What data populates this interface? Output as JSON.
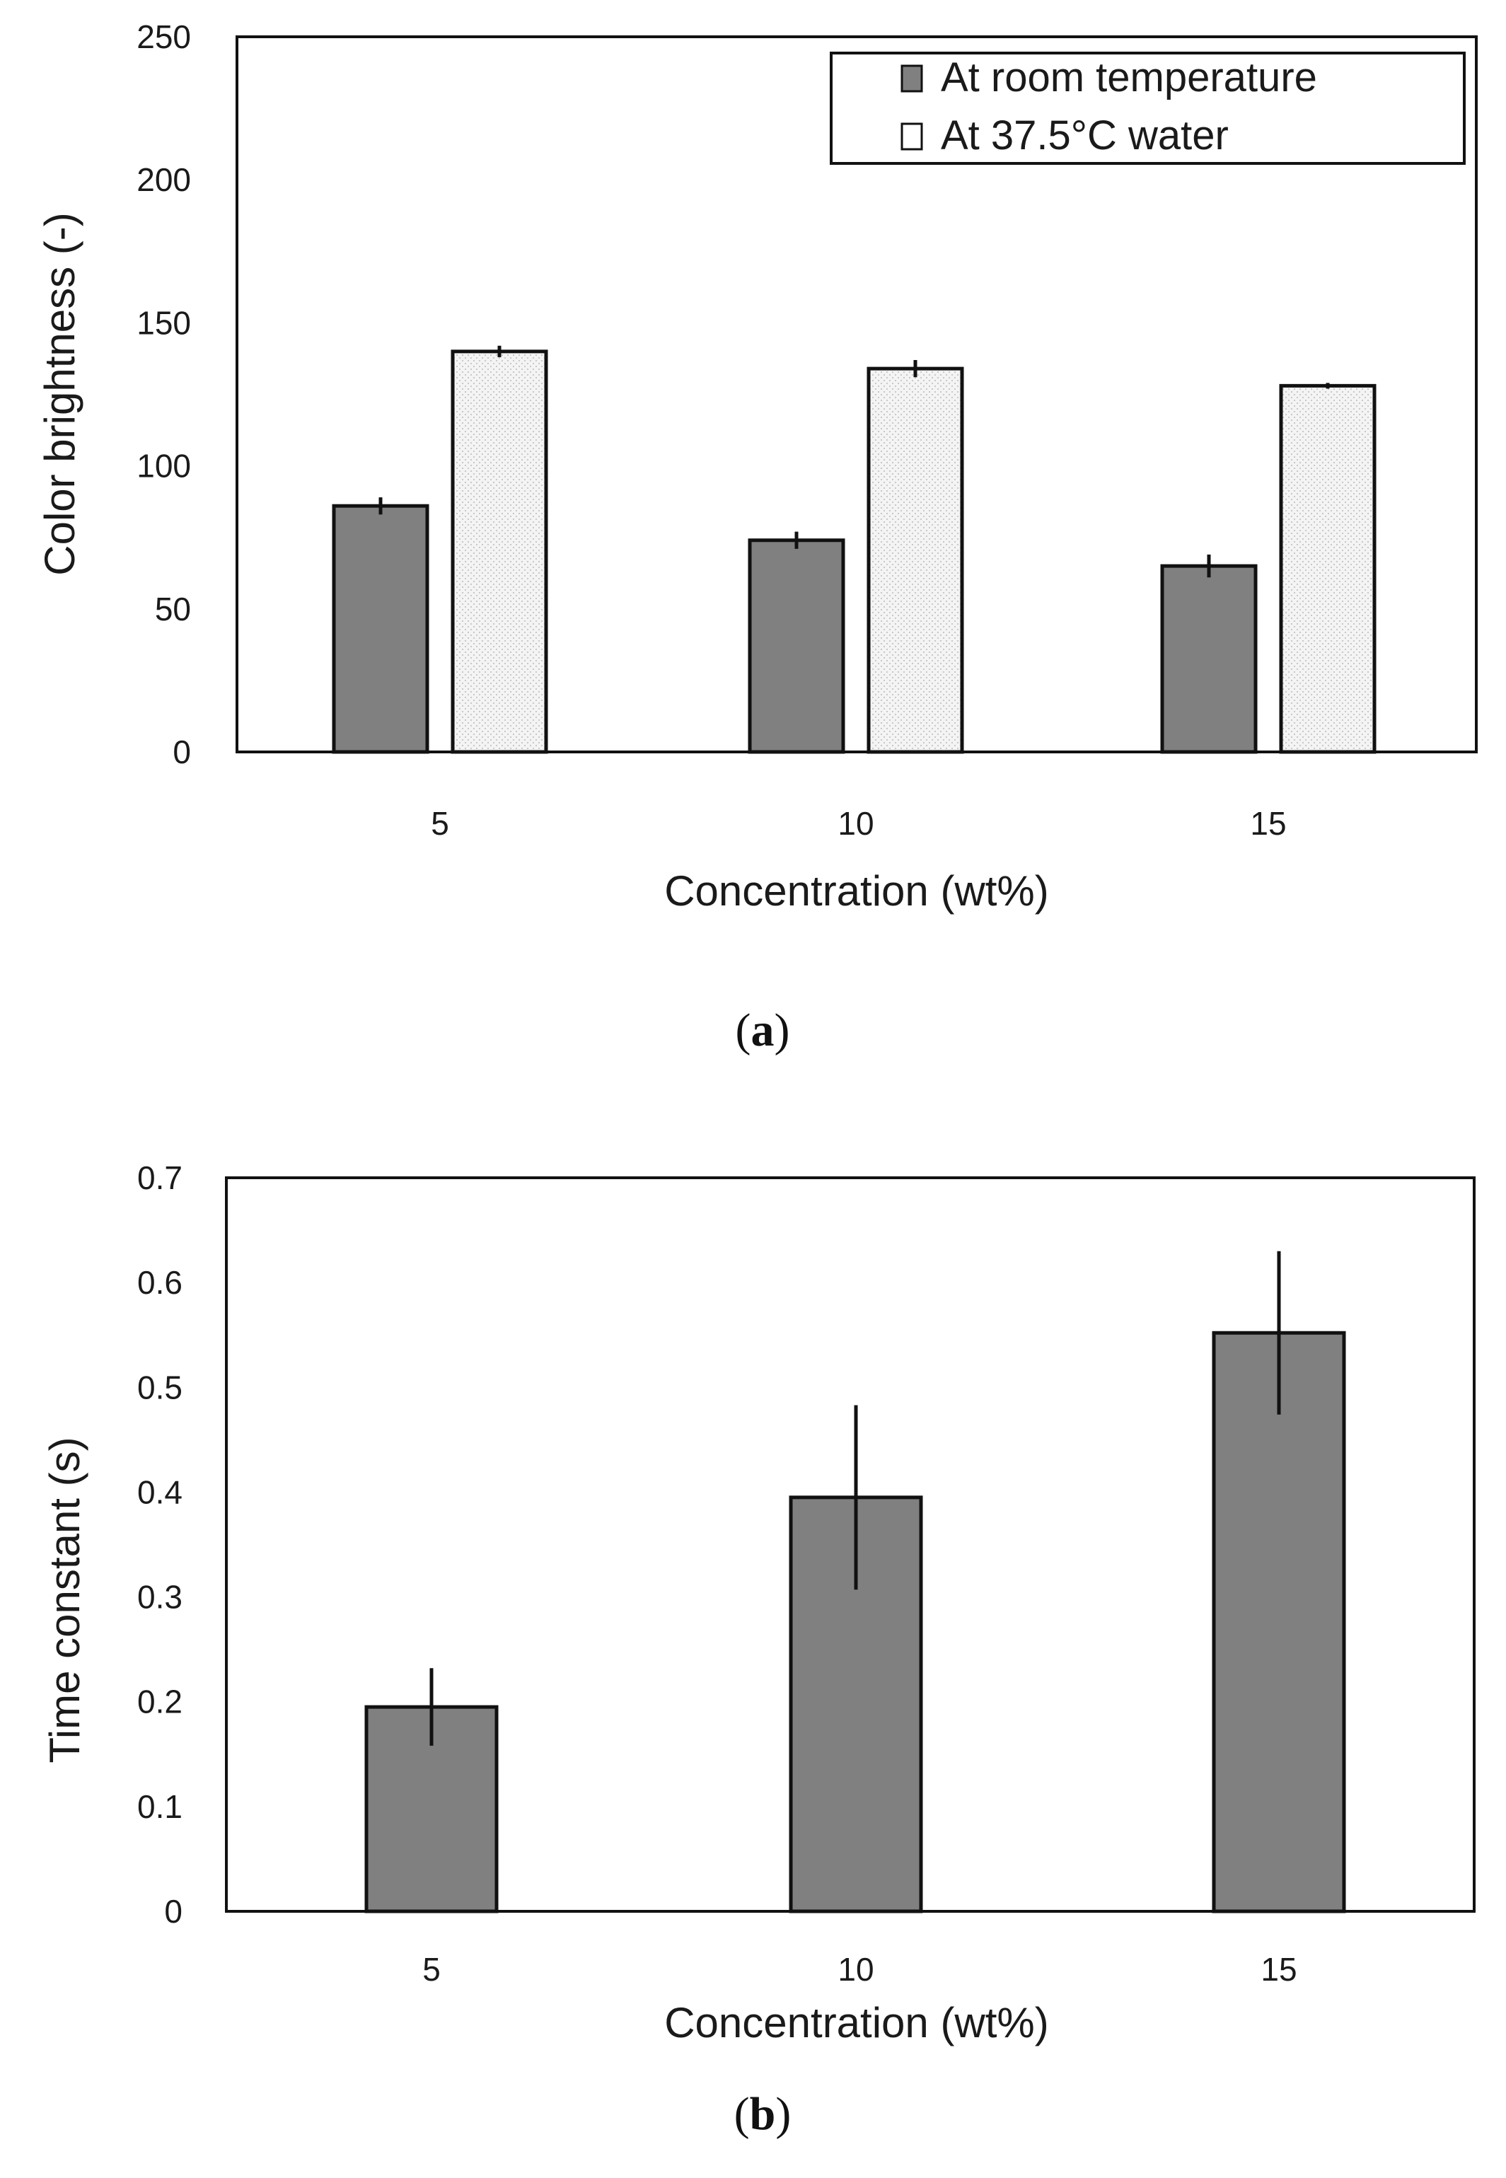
{
  "chart_data": [
    {
      "type": "bar",
      "panel_caption": "a",
      "categories": [
        "5",
        "10",
        "15"
      ],
      "series": [
        {
          "name": "At room temperature",
          "values": [
            86,
            74,
            65
          ],
          "errors": [
            3,
            3,
            4
          ],
          "fill": "#808080",
          "pattern": "solid"
        },
        {
          "name": "At 37.5°C water",
          "values": [
            140,
            134,
            128
          ],
          "errors": [
            2,
            3,
            1
          ],
          "fill": "#f2f2f2",
          "pattern": "dotted"
        }
      ],
      "title": "",
      "xlabel": "Concentration (wt%)",
      "ylabel": "Color brightness (-)",
      "ylim": [
        0,
        250
      ],
      "yticks": [
        "0",
        "50",
        "100",
        "150",
        "200",
        "250"
      ],
      "grid": false,
      "legend_position": "top-right"
    },
    {
      "type": "bar",
      "panel_caption": "b",
      "categories": [
        "5",
        "10",
        "15"
      ],
      "series": [
        {
          "name": "Time constant",
          "values": [
            0.195,
            0.395,
            0.552
          ],
          "errors": [
            0.037,
            0.088,
            0.078
          ],
          "fill": "#808080",
          "pattern": "solid"
        }
      ],
      "title": "",
      "xlabel": "Concentration (wt%)",
      "ylabel": "Time constant (s)",
      "ylim": [
        0,
        0.7
      ],
      "yticks": [
        "0",
        "0.1",
        "0.2",
        "0.3",
        "0.4",
        "0.5",
        "0.6",
        "0.7"
      ],
      "grid": false,
      "legend_position": "none"
    }
  ]
}
